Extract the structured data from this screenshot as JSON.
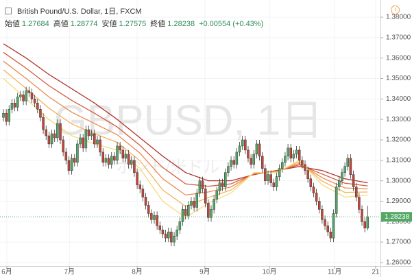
{
  "chart_data": {
    "type": "candlestick",
    "title": "British Pound/U.S. Dollar, 1日, FXCM",
    "ohlc_legend": [
      {
        "label": "始値",
        "value": "1.27684"
      },
      {
        "label": "高値",
        "value": "1.28774"
      },
      {
        "label": "安値",
        "value": "1.27575"
      },
      {
        "label": "終値",
        "value": "1.28238"
      }
    ],
    "change": "+0.00554 (+0.43%)",
    "watermark": "GBPUSD, 1日",
    "watermark_sub": "ポンド/米ドル",
    "last_price_label": "1.28238",
    "up_color": "#53a866",
    "down_color": "#c4473a",
    "grid": true,
    "xlim": [
      -1.2,
      132.5
    ],
    "ylim": [
      1.2583,
      1.3884
    ],
    "yticks": [
      {
        "value": 1.26,
        "label": "1.26000"
      },
      {
        "value": 1.27,
        "label": "1.27000"
      },
      {
        "value": 1.28,
        "label": "1.28000"
      },
      {
        "value": 1.29,
        "label": "1.29000"
      },
      {
        "value": 1.3,
        "label": "1.30000"
      },
      {
        "value": 1.31,
        "label": "1.31000"
      },
      {
        "value": 1.32,
        "label": "1.32000"
      },
      {
        "value": 1.33,
        "label": "1.33000"
      },
      {
        "value": 1.34,
        "label": "1.34000"
      },
      {
        "value": 1.35,
        "label": "1.35000"
      },
      {
        "value": 1.36,
        "label": "1.36000"
      },
      {
        "value": 1.37,
        "label": "1.37000"
      },
      {
        "value": 1.38,
        "label": "1.38000"
      }
    ],
    "xticks": [
      {
        "value": 1.2,
        "label": "6月"
      },
      {
        "value": 23.2,
        "label": "7月"
      },
      {
        "value": 47,
        "label": "8月"
      },
      {
        "value": 70.8,
        "label": "9月"
      },
      {
        "value": 93.5,
        "label": "10月"
      },
      {
        "value": 116.4,
        "label": "11月"
      },
      {
        "value": 130.8,
        "label": "21"
      }
    ],
    "candles": {
      "open": [
        1.331,
        1.333,
        1.329,
        1.335,
        1.338,
        1.336,
        1.341,
        1.342,
        1.339,
        1.344,
        1.343,
        1.34,
        1.338,
        1.335,
        1.331,
        1.325,
        1.322,
        1.318,
        1.323,
        1.321,
        1.328,
        1.32,
        1.314,
        1.31,
        1.305,
        1.311,
        1.309,
        1.318,
        1.321,
        1.316,
        1.325,
        1.322,
        1.323,
        1.318,
        1.32,
        1.314,
        1.309,
        1.311,
        1.308,
        1.312,
        1.31,
        1.317,
        1.315,
        1.311,
        1.313,
        1.308,
        1.31,
        1.304,
        1.298,
        1.296,
        1.292,
        1.288,
        1.284,
        1.281,
        1.283,
        1.278,
        1.276,
        1.274,
        1.272,
        1.275,
        1.27,
        1.273,
        1.276,
        1.28,
        1.286,
        1.283,
        1.288,
        1.29,
        1.287,
        1.294,
        1.3,
        1.296,
        1.289,
        1.282,
        1.286,
        1.291,
        1.295,
        1.299,
        1.297,
        1.304,
        1.307,
        1.31,
        1.308,
        1.314,
        1.317,
        1.32,
        1.315,
        1.311,
        1.308,
        1.313,
        1.318,
        1.312,
        1.306,
        1.3,
        1.303,
        1.299,
        1.297,
        1.302,
        1.306,
        1.309,
        1.312,
        1.316,
        1.311,
        1.313,
        1.315,
        1.31,
        1.308,
        1.305,
        1.301,
        1.297,
        1.294,
        1.29,
        1.286,
        1.281,
        1.278,
        1.275,
        1.272,
        1.284,
        1.297,
        1.3,
        1.304,
        1.307,
        1.311,
        1.303,
        1.297,
        1.292,
        1.286,
        1.28,
        1.27684
      ],
      "high": [
        1.335,
        1.335,
        1.337,
        1.34,
        1.34,
        1.343,
        1.344,
        1.344,
        1.346,
        1.346,
        1.345,
        1.342,
        1.34,
        1.337,
        1.333,
        1.327,
        1.324,
        1.325,
        1.325,
        1.33,
        1.33,
        1.322,
        1.316,
        1.312,
        1.313,
        1.313,
        1.32,
        1.323,
        1.323,
        1.327,
        1.327,
        1.325,
        1.325,
        1.322,
        1.322,
        1.316,
        1.313,
        1.313,
        1.314,
        1.314,
        1.319,
        1.319,
        1.317,
        1.315,
        1.315,
        1.312,
        1.312,
        1.306,
        1.3,
        1.298,
        1.294,
        1.29,
        1.286,
        1.285,
        1.285,
        1.28,
        1.278,
        1.276,
        1.277,
        1.277,
        1.275,
        1.278,
        1.282,
        1.288,
        1.288,
        1.29,
        1.292,
        1.292,
        1.296,
        1.302,
        1.302,
        1.298,
        1.291,
        1.288,
        1.293,
        1.297,
        1.301,
        1.301,
        1.306,
        1.309,
        1.312,
        1.312,
        1.316,
        1.319,
        1.322,
        1.322,
        1.317,
        1.313,
        1.315,
        1.32,
        1.32,
        1.314,
        1.308,
        1.305,
        1.305,
        1.301,
        1.304,
        1.308,
        1.311,
        1.314,
        1.318,
        1.318,
        1.315,
        1.317,
        1.317,
        1.312,
        1.31,
        1.307,
        1.303,
        1.299,
        1.296,
        1.292,
        1.288,
        1.283,
        1.28,
        1.277,
        1.286,
        1.299,
        1.302,
        1.306,
        1.309,
        1.313,
        1.313,
        1.305,
        1.299,
        1.294,
        1.288,
        1.282,
        1.28774
      ],
      "low": [
        1.329,
        1.327,
        1.327,
        1.333,
        1.334,
        1.334,
        1.339,
        1.337,
        1.337,
        1.341,
        1.338,
        1.336,
        1.333,
        1.329,
        1.323,
        1.32,
        1.316,
        1.316,
        1.319,
        1.319,
        1.318,
        1.312,
        1.308,
        1.303,
        1.303,
        1.307,
        1.307,
        1.316,
        1.314,
        1.314,
        1.32,
        1.32,
        1.316,
        1.316,
        1.312,
        1.307,
        1.307,
        1.306,
        1.306,
        1.308,
        1.308,
        1.313,
        1.309,
        1.309,
        1.306,
        1.306,
        1.302,
        1.296,
        1.294,
        1.29,
        1.286,
        1.282,
        1.279,
        1.279,
        1.276,
        1.274,
        1.272,
        1.27,
        1.27,
        1.268,
        1.268,
        1.271,
        1.274,
        1.278,
        1.281,
        1.281,
        1.286,
        1.285,
        1.285,
        1.292,
        1.294,
        1.287,
        1.28,
        1.28,
        1.284,
        1.289,
        1.293,
        1.295,
        1.295,
        1.302,
        1.305,
        1.306,
        1.306,
        1.312,
        1.315,
        1.313,
        1.309,
        1.306,
        1.306,
        1.311,
        1.31,
        1.304,
        1.298,
        1.298,
        1.297,
        1.295,
        1.295,
        1.3,
        1.304,
        1.307,
        1.31,
        1.309,
        1.309,
        1.311,
        1.308,
        1.306,
        1.303,
        1.299,
        1.295,
        1.292,
        1.288,
        1.284,
        1.279,
        1.276,
        1.273,
        1.27,
        1.27,
        1.282,
        1.295,
        1.298,
        1.302,
        1.305,
        1.301,
        1.295,
        1.29,
        1.284,
        1.278,
        1.2748,
        1.27575
      ],
      "close": [
        1.333,
        1.329,
        1.335,
        1.338,
        1.336,
        1.341,
        1.342,
        1.339,
        1.344,
        1.343,
        1.34,
        1.338,
        1.335,
        1.331,
        1.325,
        1.322,
        1.318,
        1.323,
        1.321,
        1.328,
        1.32,
        1.314,
        1.31,
        1.305,
        1.311,
        1.309,
        1.318,
        1.321,
        1.316,
        1.325,
        1.322,
        1.323,
        1.318,
        1.32,
        1.314,
        1.309,
        1.311,
        1.308,
        1.312,
        1.31,
        1.317,
        1.315,
        1.311,
        1.313,
        1.308,
        1.31,
        1.304,
        1.298,
        1.296,
        1.292,
        1.288,
        1.284,
        1.281,
        1.283,
        1.278,
        1.276,
        1.274,
        1.272,
        1.275,
        1.27,
        1.273,
        1.276,
        1.28,
        1.286,
        1.283,
        1.288,
        1.29,
        1.287,
        1.294,
        1.3,
        1.296,
        1.289,
        1.282,
        1.286,
        1.291,
        1.295,
        1.299,
        1.297,
        1.304,
        1.307,
        1.31,
        1.308,
        1.314,
        1.317,
        1.32,
        1.315,
        1.311,
        1.308,
        1.313,
        1.318,
        1.312,
        1.306,
        1.3,
        1.303,
        1.299,
        1.297,
        1.302,
        1.306,
        1.309,
        1.312,
        1.316,
        1.311,
        1.313,
        1.315,
        1.31,
        1.308,
        1.305,
        1.301,
        1.297,
        1.294,
        1.29,
        1.286,
        1.281,
        1.278,
        1.275,
        1.272,
        1.284,
        1.297,
        1.3,
        1.304,
        1.307,
        1.311,
        1.303,
        1.297,
        1.292,
        1.286,
        1.28,
        1.27684,
        1.28238
      ]
    },
    "ribbons": {
      "x": [
        0,
        8,
        16,
        24,
        32,
        40,
        48,
        56,
        64,
        72,
        80,
        88,
        96,
        104,
        112,
        120,
        128
      ],
      "series": [
        {
          "color": "#b2352c",
          "values": [
            1.367,
            1.36,
            1.352,
            1.345,
            1.338,
            1.33,
            1.321,
            1.312,
            1.304,
            1.3,
            1.3,
            1.303,
            1.305,
            1.307,
            1.305,
            1.301,
            1.299
          ]
        },
        {
          "color": "#d65a3c",
          "values": [
            1.3628,
            1.355,
            1.3465,
            1.3393,
            1.333,
            1.3263,
            1.3173,
            1.3065,
            1.2985,
            1.2973,
            1.2985,
            1.3033,
            1.3048,
            1.3078,
            1.3033,
            1.2988,
            1.2975
          ]
        },
        {
          "color": "#ec8a4c",
          "values": [
            1.3585,
            1.35,
            1.341,
            1.3335,
            1.328,
            1.3225,
            1.3135,
            1.301,
            1.293,
            1.2945,
            1.297,
            1.3035,
            1.3045,
            1.3085,
            1.3015,
            1.2965,
            1.296
          ]
        },
        {
          "color": "#f4b35e",
          "values": [
            1.3543,
            1.345,
            1.3355,
            1.3278,
            1.323,
            1.3188,
            1.3098,
            1.2955,
            1.2875,
            1.2918,
            1.2955,
            1.3038,
            1.3043,
            1.3093,
            1.2998,
            1.2943,
            1.2945
          ]
        },
        {
          "color": "#f5dc78",
          "values": [
            1.35,
            1.34,
            1.33,
            1.322,
            1.318,
            1.315,
            1.306,
            1.29,
            1.282,
            1.289,
            1.294,
            1.304,
            1.304,
            1.31,
            1.298,
            1.292,
            1.293
          ]
        }
      ]
    }
  }
}
